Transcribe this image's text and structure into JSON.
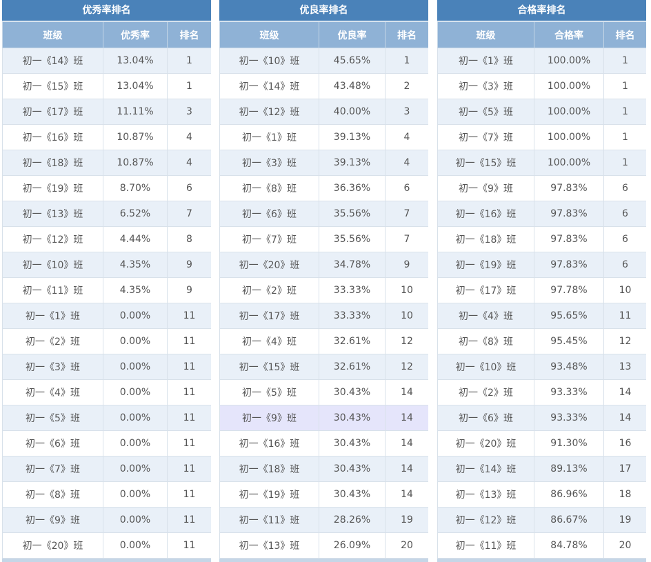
{
  "panels": [
    {
      "title": "优秀率排名",
      "headers": [
        "班级",
        "优秀率",
        "排名"
      ],
      "rows": [
        [
          "初一《14》班",
          "13.04%",
          "1"
        ],
        [
          "初一《15》班",
          "13.04%",
          "1"
        ],
        [
          "初一《17》班",
          "11.11%",
          "3"
        ],
        [
          "初一《16》班",
          "10.87%",
          "4"
        ],
        [
          "初一《18》班",
          "10.87%",
          "4"
        ],
        [
          "初一《19》班",
          "8.70%",
          "6"
        ],
        [
          "初一《13》班",
          "6.52%",
          "7"
        ],
        [
          "初一《12》班",
          "4.44%",
          "8"
        ],
        [
          "初一《10》班",
          "4.35%",
          "9"
        ],
        [
          "初一《11》班",
          "4.35%",
          "9"
        ],
        [
          "初一《1》班",
          "0.00%",
          "11"
        ],
        [
          "初一《2》班",
          "0.00%",
          "11"
        ],
        [
          "初一《3》班",
          "0.00%",
          "11"
        ],
        [
          "初一《4》班",
          "0.00%",
          "11"
        ],
        [
          "初一《5》班",
          "0.00%",
          "11"
        ],
        [
          "初一《6》班",
          "0.00%",
          "11"
        ],
        [
          "初一《7》班",
          "0.00%",
          "11"
        ],
        [
          "初一《8》班",
          "0.00%",
          "11"
        ],
        [
          "初一《9》班",
          "0.00%",
          "11"
        ],
        [
          "初一《20》班",
          "0.00%",
          "11"
        ]
      ]
    },
    {
      "title": "优良率排名",
      "headers": [
        "班级",
        "优良率",
        "排名"
      ],
      "highlight_row": 14,
      "rows": [
        [
          "初一《10》班",
          "45.65%",
          "1"
        ],
        [
          "初一《14》班",
          "43.48%",
          "2"
        ],
        [
          "初一《12》班",
          "40.00%",
          "3"
        ],
        [
          "初一《1》班",
          "39.13%",
          "4"
        ],
        [
          "初一《3》班",
          "39.13%",
          "4"
        ],
        [
          "初一《8》班",
          "36.36%",
          "6"
        ],
        [
          "初一《6》班",
          "35.56%",
          "7"
        ],
        [
          "初一《7》班",
          "35.56%",
          "7"
        ],
        [
          "初一《20》班",
          "34.78%",
          "9"
        ],
        [
          "初一《2》班",
          "33.33%",
          "10"
        ],
        [
          "初一《17》班",
          "33.33%",
          "10"
        ],
        [
          "初一《4》班",
          "32.61%",
          "12"
        ],
        [
          "初一《15》班",
          "32.61%",
          "12"
        ],
        [
          "初一《5》班",
          "30.43%",
          "14"
        ],
        [
          "初一《9》班",
          "30.43%",
          "14"
        ],
        [
          "初一《16》班",
          "30.43%",
          "14"
        ],
        [
          "初一《18》班",
          "30.43%",
          "14"
        ],
        [
          "初一《19》班",
          "30.43%",
          "14"
        ],
        [
          "初一《11》班",
          "28.26%",
          "19"
        ],
        [
          "初一《13》班",
          "26.09%",
          "20"
        ]
      ]
    },
    {
      "title": "合格率排名",
      "headers": [
        "班级",
        "合格率",
        "排名"
      ],
      "rows": [
        [
          "初一《1》班",
          "100.00%",
          "1"
        ],
        [
          "初一《3》班",
          "100.00%",
          "1"
        ],
        [
          "初一《5》班",
          "100.00%",
          "1"
        ],
        [
          "初一《7》班",
          "100.00%",
          "1"
        ],
        [
          "初一《15》班",
          "100.00%",
          "1"
        ],
        [
          "初一《9》班",
          "97.83%",
          "6"
        ],
        [
          "初一《16》班",
          "97.83%",
          "6"
        ],
        [
          "初一《18》班",
          "97.83%",
          "6"
        ],
        [
          "初一《19》班",
          "97.83%",
          "6"
        ],
        [
          "初一《17》班",
          "97.78%",
          "10"
        ],
        [
          "初一《4》班",
          "95.65%",
          "11"
        ],
        [
          "初一《8》班",
          "95.45%",
          "12"
        ],
        [
          "初一《10》班",
          "93.48%",
          "13"
        ],
        [
          "初一《2》班",
          "93.33%",
          "14"
        ],
        [
          "初一《6》班",
          "93.33%",
          "14"
        ],
        [
          "初一《20》班",
          "91.30%",
          "16"
        ],
        [
          "初一《14》班",
          "89.13%",
          "17"
        ],
        [
          "初一《13》班",
          "86.96%",
          "18"
        ],
        [
          "初一《12》班",
          "86.67%",
          "19"
        ],
        [
          "初一《11》班",
          "84.78%",
          "20"
        ]
      ]
    }
  ]
}
